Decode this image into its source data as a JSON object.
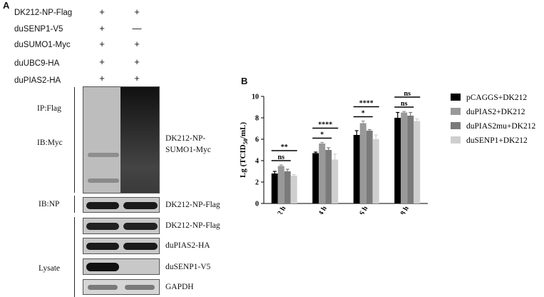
{
  "panel_a": {
    "letter": "A",
    "conditions": [
      {
        "label": "DK212-NP-Flag",
        "lane1": "+",
        "lane2": "+"
      },
      {
        "label": "duSENP1-V5",
        "lane1": "+",
        "lane2": "—"
      },
      {
        "label": "duSUMO1-Myc",
        "lane1": "+",
        "lane2": "+"
      },
      {
        "label": "duUBC9-HA",
        "lane1": "+",
        "lane2": "+"
      },
      {
        "label": "duPIAS2-HA",
        "lane1": "+",
        "lane2": "+"
      }
    ],
    "side_labels": {
      "ip": "IP:Flag",
      "ib_myc": "IB:Myc",
      "ib_np": "IB:NP",
      "lysate": "Lysate"
    },
    "band_labels": {
      "sumo_line1": "DK212-NP-",
      "sumo_line2": "SUMO1-Myc",
      "ib_np_band": "DK212-NP-Flag",
      "lysate_np": "DK212-NP-Flag",
      "pias2": "duPIAS2-HA",
      "senp1": "duSENP1-V5",
      "gapdh": "GAPDH"
    }
  },
  "panel_b": {
    "letter": "B"
  },
  "chart_data": {
    "type": "bar",
    "categories": [
      "12 h",
      "24 h",
      "36 h",
      "48 h"
    ],
    "ylabel": "Lg (TCID50/mL)",
    "ylim": [
      0,
      10
    ],
    "yticks": [
      0,
      2,
      4,
      6,
      8,
      10
    ],
    "series": [
      {
        "name": "pCAGGS+DK212",
        "color": "#000000",
        "values": [
          2.8,
          4.7,
          6.4,
          8.0
        ],
        "errors": [
          0.2,
          0.1,
          0.4,
          0.5
        ]
      },
      {
        "name": "duPIAS2+DK212",
        "color": "#999999",
        "values": [
          3.5,
          5.6,
          7.5,
          8.5
        ],
        "errors": [
          0.1,
          0.1,
          0.2,
          0.1
        ]
      },
      {
        "name": "duPIAS2mu+DK212",
        "color": "#7a7a7a",
        "values": [
          3.0,
          5.0,
          6.8,
          8.2
        ],
        "errors": [
          0.2,
          0.2,
          0.1,
          0.3
        ]
      },
      {
        "name": "duSENP1+DK212",
        "color": "#cfcfcf",
        "values": [
          2.6,
          4.1,
          6.0,
          7.7
        ],
        "errors": [
          0.1,
          0.5,
          0.4,
          0.2
        ]
      }
    ],
    "annotations": [
      {
        "group": 0,
        "from": 0,
        "to": 3,
        "level": 1,
        "text": "**"
      },
      {
        "group": 0,
        "from": 0,
        "to": 2,
        "level": 0,
        "text": "ns"
      },
      {
        "group": 1,
        "from": 0,
        "to": 3,
        "level": 1,
        "text": "****"
      },
      {
        "group": 1,
        "from": 0,
        "to": 2,
        "level": 0,
        "text": "*"
      },
      {
        "group": 2,
        "from": 0,
        "to": 3,
        "level": 1,
        "text": "****"
      },
      {
        "group": 2,
        "from": 0,
        "to": 2,
        "level": 0,
        "text": "*"
      },
      {
        "group": 3,
        "from": 0,
        "to": 3,
        "level": 1,
        "text": "ns"
      },
      {
        "group": 3,
        "from": 0,
        "to": 2,
        "level": 0,
        "text": "ns"
      }
    ]
  }
}
